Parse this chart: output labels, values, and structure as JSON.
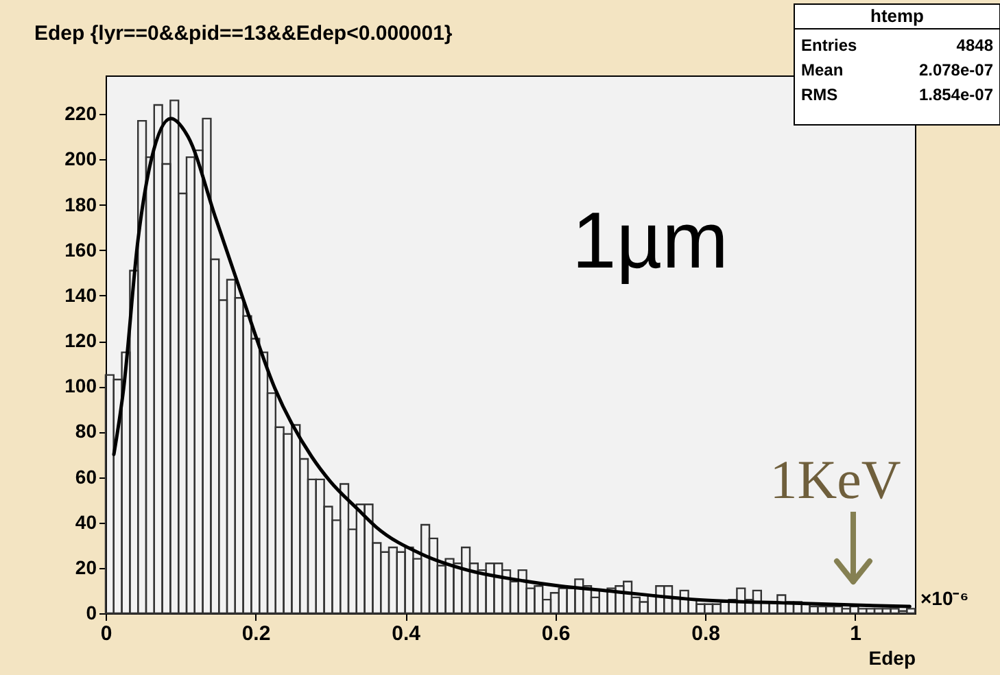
{
  "chart_data": {
    "type": "histogram",
    "title": "Edep {lyr==0&&pid==13&&Edep<0.000001}",
    "xlabel": "Edep",
    "bins": [
      0,
      0.0108,
      0.0216,
      0.0324,
      0.0432,
      0.054,
      0.0648,
      0.0756,
      0.0864,
      0.0972,
      0.108,
      0.1188,
      0.1296,
      0.1404,
      0.1512,
      0.162,
      0.1728,
      0.1836,
      0.1944,
      0.2052,
      0.216,
      0.2268,
      0.2376,
      0.2484,
      0.2592,
      0.27,
      0.2808,
      0.2916,
      0.3024,
      0.3132,
      0.324,
      0.3348,
      0.3456,
      0.3564,
      0.3672,
      0.378,
      0.3888,
      0.3996,
      0.4104,
      0.4212,
      0.432,
      0.4428,
      0.4536,
      0.4644,
      0.4752,
      0.486,
      0.4968,
      0.5076,
      0.5184,
      0.5292,
      0.54,
      0.5508,
      0.5616,
      0.5724,
      0.5832,
      0.594,
      0.6048,
      0.6156,
      0.6264,
      0.6372,
      0.648,
      0.6588,
      0.6696,
      0.6804,
      0.6912,
      0.702,
      0.7128,
      0.7236,
      0.7344,
      0.7452,
      0.756,
      0.7668,
      0.7776,
      0.7884,
      0.7992,
      0.81,
      0.8208,
      0.8316,
      0.8424,
      0.8532,
      0.864,
      0.8748,
      0.8856,
      0.8964,
      0.9072,
      0.918,
      0.9288,
      0.9396,
      0.9504,
      0.9612,
      0.972,
      0.9828,
      0.9936,
      1.0044,
      1.0152,
      1.026,
      1.0368,
      1.0476,
      1.0584,
      1.0692,
      1.08
    ],
    "series": [
      {
        "color": "#333333",
        "values": [
          105,
          103,
          115,
          151,
          217,
          201,
          224,
          198,
          226,
          185,
          201,
          204,
          218,
          156,
          138,
          147,
          139,
          131,
          121,
          115,
          97,
          82,
          79,
          83,
          68,
          59,
          59,
          47,
          41,
          57,
          37,
          48,
          48,
          31,
          27,
          29,
          27,
          29,
          24,
          39,
          33,
          21,
          24,
          22,
          29,
          22,
          19,
          22,
          22,
          19,
          14,
          19,
          11,
          12,
          6,
          9,
          11,
          11,
          15,
          12,
          7,
          10,
          11,
          12,
          14,
          7,
          5,
          8,
          12,
          12,
          7,
          10,
          6,
          4,
          4,
          4,
          5,
          6,
          11,
          6,
          10,
          5,
          5,
          8,
          5,
          5,
          4,
          3,
          3,
          3,
          3,
          2,
          3,
          2,
          2,
          2,
          2,
          2,
          1,
          2
        ]
      },
      {
        "type": "line",
        "color": "#000000",
        "x": [
          0.011,
          0.024,
          0.043,
          0.061,
          0.087,
          0.11,
          0.147,
          0.183,
          0.226,
          0.275,
          0.3,
          0.336,
          0.361,
          0.422,
          0.483,
          0.544,
          0.606,
          0.667,
          0.789,
          0.911,
          1.0,
          1.073
        ],
        "values": [
          70,
          99,
          164,
          200,
          218,
          210,
          174,
          139,
          99,
          69,
          58,
          46,
          38,
          26,
          19,
          15,
          12,
          10,
          6,
          4.5,
          3.6,
          3
        ]
      }
    ],
    "xlim": [
      0,
      1.08
    ],
    "ylim": [
      0,
      237
    ],
    "xticks": [
      0,
      0.2,
      0.4,
      0.6,
      0.8,
      1
    ],
    "yticks": [
      0,
      20,
      40,
      60,
      80,
      100,
      120,
      140,
      160,
      180,
      200,
      220
    ],
    "grid": false,
    "annotations": [
      "1µm",
      "1KeV",
      "×10⁻⁶",
      "htemp",
      "Entries",
      "4848",
      "Mean",
      "2.078e-07",
      "RMS",
      "1.854e-07"
    ]
  }
}
